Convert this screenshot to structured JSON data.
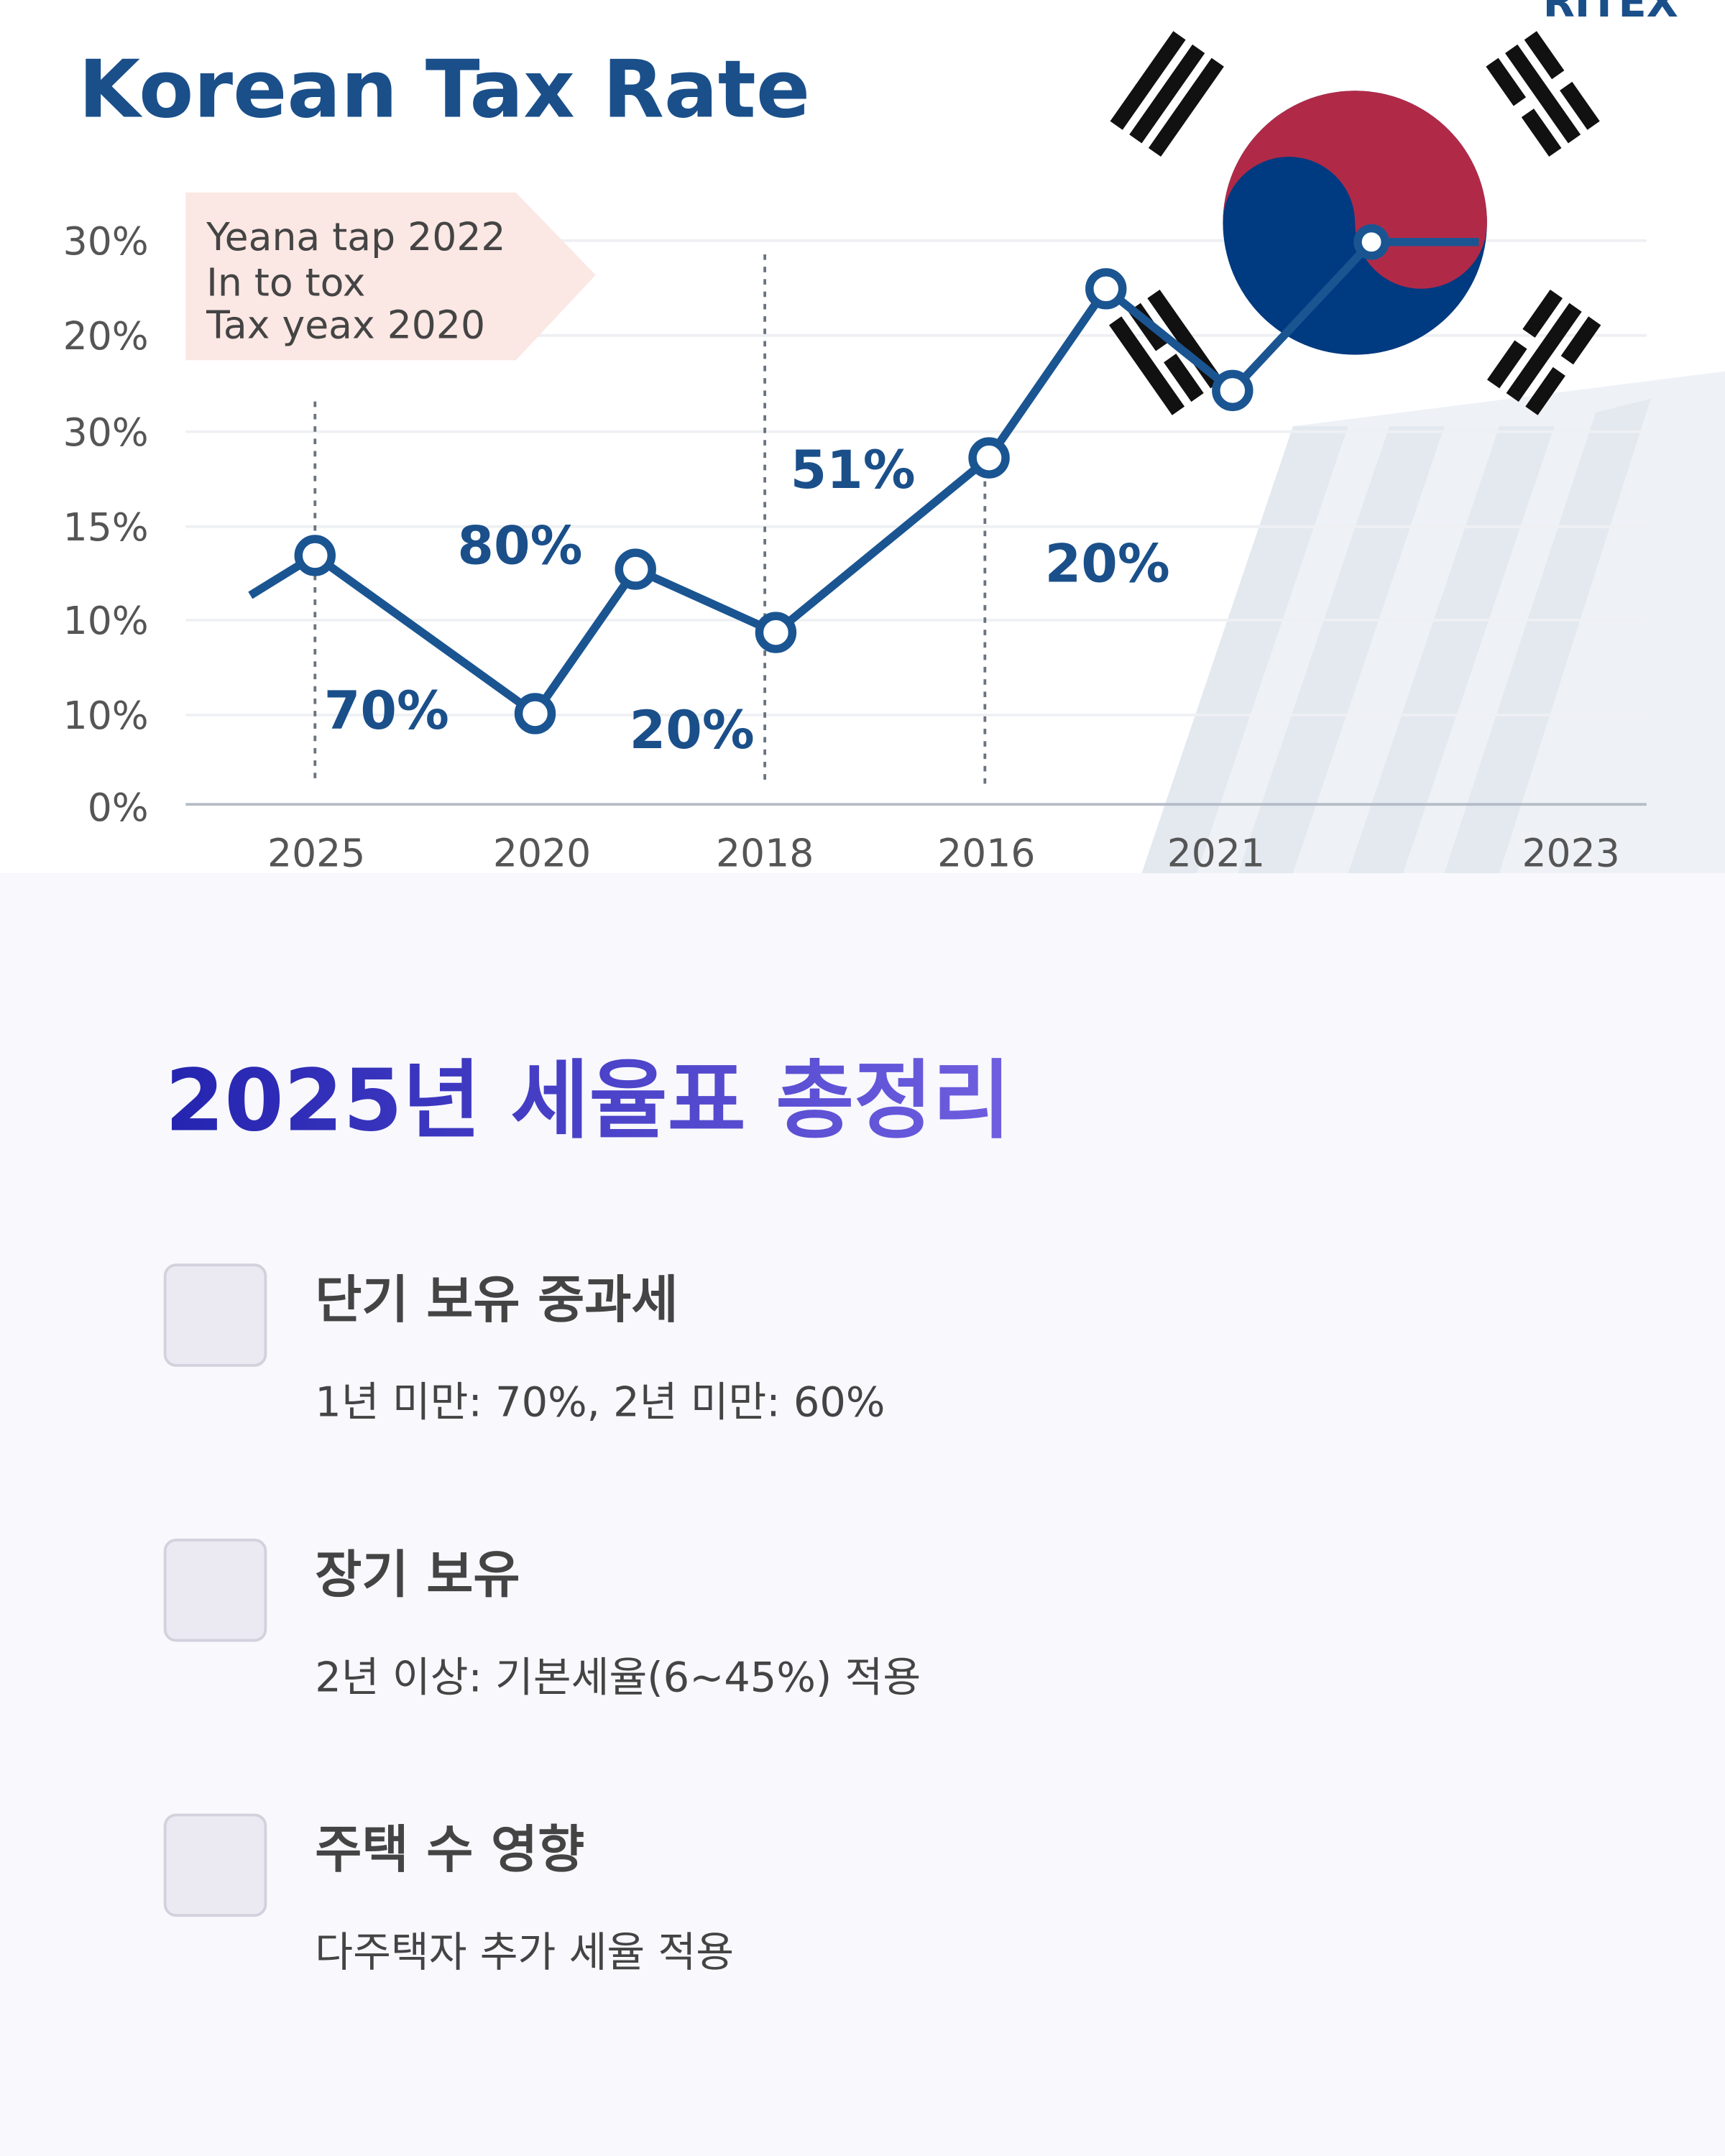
{
  "chart_image": {
    "title": "Korean Tax Rate",
    "logo": "RITEX",
    "callout": [
      "Yeana tap 2022",
      "In to tox",
      "Tax yeax 2020"
    ],
    "y_labels": [
      "30%",
      "20%",
      "30%",
      "15%",
      "10%",
      "10%",
      "0%"
    ],
    "x_labels": [
      "2025",
      "2020",
      "2018",
      "2016",
      "2021",
      "2023"
    ],
    "point_labels": [
      "70%",
      "80%",
      "20%",
      "51%",
      "20%"
    ]
  },
  "section": {
    "title": "2025년 세율표 총정리",
    "items": [
      {
        "title": "단기 보유 중과세",
        "desc": "1년 미만: 70%, 2년 미만: 60%"
      },
      {
        "title": "장기 보유",
        "desc": "2년 이상: 기본세율(6~45%) 적용"
      },
      {
        "title": "주택 수 영향",
        "desc": "다주택자 추가 세율 적용"
      }
    ]
  }
}
